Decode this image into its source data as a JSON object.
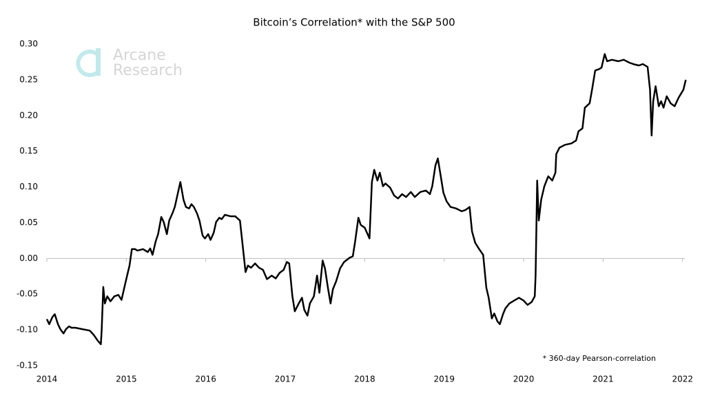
{
  "chart_data": {
    "type": "line",
    "title": "Bitcoin’s Correlation* with the S&P 500",
    "annotation": "* 360-day Pearson-correlation",
    "watermark": [
      "Arcane",
      "Research"
    ],
    "color": "#000000",
    "xlim": [
      2014,
      2022.08
    ],
    "xticks": [
      2014,
      2015,
      2016,
      2017,
      2018,
      2019,
      2020,
      2021,
      2022
    ],
    "ylim": [
      -0.15,
      0.3
    ],
    "yticks": [
      {
        "value": 0.3,
        "label": "0.30"
      },
      {
        "value": 0.25,
        "label": "0.25"
      },
      {
        "value": 0.2,
        "label": "0.20"
      },
      {
        "value": 0.15,
        "label": "0.15"
      },
      {
        "value": 0.1,
        "label": "0.10"
      },
      {
        "value": 0.05,
        "label": "0.05"
      },
      {
        "value": 0,
        "label": "0.00"
      },
      {
        "value": -0.05,
        "label": "-0.05"
      },
      {
        "value": -0.1,
        "label": "-0.10"
      },
      {
        "value": -0.15,
        "label": "-0.15"
      }
    ],
    "grid": false,
    "x": [
      2014.0,
      2014.03,
      2014.07,
      2014.1,
      2014.14,
      2014.17,
      2014.21,
      2014.24,
      2014.28,
      2014.31,
      2014.36,
      2014.45,
      2014.54,
      2014.59,
      2014.64,
      2014.68,
      2014.69,
      2014.71,
      2014.73,
      2014.76,
      2014.8,
      2014.85,
      2014.9,
      2014.94,
      2014.97,
      2015.01,
      2015.04,
      2015.07,
      2015.11,
      2015.14,
      2015.21,
      2015.27,
      2015.3,
      2015.33,
      2015.37,
      2015.4,
      2015.44,
      2015.47,
      2015.51,
      2015.54,
      2015.58,
      2015.61,
      2015.65,
      2015.68,
      2015.72,
      2015.75,
      2015.79,
      2015.82,
      2015.85,
      2015.89,
      2015.92,
      2015.96,
      2015.99,
      2016.03,
      2016.06,
      2016.1,
      2016.13,
      2016.17,
      2016.2,
      2016.24,
      2016.31,
      2016.37,
      2016.43,
      2016.46,
      2016.5,
      2016.53,
      2016.57,
      2016.62,
      2016.67,
      2016.72,
      2016.77,
      2016.83,
      2016.88,
      2016.93,
      2016.98,
      2017.02,
      2017.05,
      2017.09,
      2017.12,
      2017.17,
      2017.21,
      2017.24,
      2017.28,
      2017.31,
      2017.36,
      2017.4,
      2017.43,
      2017.47,
      2017.5,
      2017.54,
      2017.57,
      2017.6,
      2017.64,
      2017.69,
      2017.74,
      2017.81,
      2017.85,
      2017.88,
      2017.92,
      2017.95,
      2018.0,
      2018.06,
      2018.09,
      2018.12,
      2018.16,
      2018.19,
      2018.23,
      2018.26,
      2018.32,
      2018.37,
      2018.42,
      2018.47,
      2018.52,
      2018.58,
      2018.63,
      2018.7,
      2018.77,
      2018.82,
      2018.85,
      2018.89,
      2018.92,
      2018.96,
      2018.99,
      2019.03,
      2019.08,
      2019.15,
      2019.22,
      2019.27,
      2019.32,
      2019.35,
      2019.39,
      2019.44,
      2019.49,
      2019.53,
      2019.56,
      2019.6,
      2019.63,
      2019.67,
      2019.7,
      2019.74,
      2019.77,
      2019.82,
      2019.88,
      2019.94,
      2020.0,
      2020.05,
      2020.1,
      2020.14,
      2020.15,
      2020.17,
      2020.19,
      2020.22,
      2020.26,
      2020.31,
      2020.36,
      2020.4,
      2020.41,
      2020.45,
      2020.52,
      2020.6,
      2020.66,
      2020.69,
      2020.74,
      2020.77,
      2020.83,
      2020.86,
      2020.9,
      2020.95,
      2020.98,
      2021.02,
      2021.05,
      2021.11,
      2021.19,
      2021.26,
      2021.33,
      2021.38,
      2021.45,
      2021.5,
      2021.56,
      2021.59,
      2021.61,
      2021.63,
      2021.66,
      2021.7,
      2021.73,
      2021.76,
      2021.8,
      2021.85,
      2021.9,
      2021.95,
      2022.01,
      2022.04
    ],
    "values": [
      -0.085,
      -0.092,
      -0.082,
      -0.078,
      -0.092,
      -0.099,
      -0.105,
      -0.099,
      -0.095,
      -0.097,
      -0.097,
      -0.099,
      -0.101,
      -0.107,
      -0.115,
      -0.12,
      -0.1,
      -0.04,
      -0.063,
      -0.053,
      -0.06,
      -0.053,
      -0.051,
      -0.058,
      -0.043,
      -0.024,
      -0.01,
      0.013,
      0.013,
      0.011,
      0.013,
      0.009,
      0.014,
      0.005,
      0.024,
      0.034,
      0.058,
      0.051,
      0.034,
      0.053,
      0.063,
      0.072,
      0.092,
      0.107,
      0.082,
      0.072,
      0.07,
      0.076,
      0.072,
      0.063,
      0.053,
      0.032,
      0.028,
      0.034,
      0.026,
      0.036,
      0.051,
      0.057,
      0.055,
      0.061,
      0.059,
      0.059,
      0.053,
      0.022,
      -0.019,
      -0.01,
      -0.013,
      -0.007,
      -0.013,
      -0.016,
      -0.029,
      -0.024,
      -0.028,
      -0.02,
      -0.016,
      -0.005,
      -0.007,
      -0.053,
      -0.074,
      -0.063,
      -0.055,
      -0.072,
      -0.08,
      -0.063,
      -0.053,
      -0.024,
      -0.048,
      -0.003,
      -0.014,
      -0.043,
      -0.063,
      -0.043,
      -0.032,
      -0.014,
      -0.005,
      0.001,
      0.003,
      0.024,
      0.057,
      0.047,
      0.043,
      0.028,
      0.107,
      0.124,
      0.109,
      0.12,
      0.101,
      0.105,
      0.099,
      0.088,
      0.084,
      0.09,
      0.086,
      0.093,
      0.086,
      0.093,
      0.095,
      0.09,
      0.101,
      0.13,
      0.14,
      0.113,
      0.092,
      0.08,
      0.072,
      0.07,
      0.066,
      0.068,
      0.072,
      0.038,
      0.022,
      0.013,
      0.005,
      -0.041,
      -0.055,
      -0.084,
      -0.077,
      -0.088,
      -0.092,
      -0.078,
      -0.07,
      -0.063,
      -0.059,
      -0.055,
      -0.059,
      -0.065,
      -0.061,
      -0.053,
      -0.024,
      0.109,
      0.053,
      0.082,
      0.101,
      0.115,
      0.109,
      0.12,
      0.146,
      0.155,
      0.159,
      0.161,
      0.165,
      0.178,
      0.182,
      0.211,
      0.217,
      0.236,
      0.263,
      0.265,
      0.267,
      0.286,
      0.276,
      0.278,
      0.276,
      0.278,
      0.274,
      0.272,
      0.27,
      0.272,
      0.268,
      0.236,
      0.172,
      0.22,
      0.241,
      0.213,
      0.22,
      0.211,
      0.227,
      0.217,
      0.213,
      0.225,
      0.236,
      0.25
    ]
  }
}
